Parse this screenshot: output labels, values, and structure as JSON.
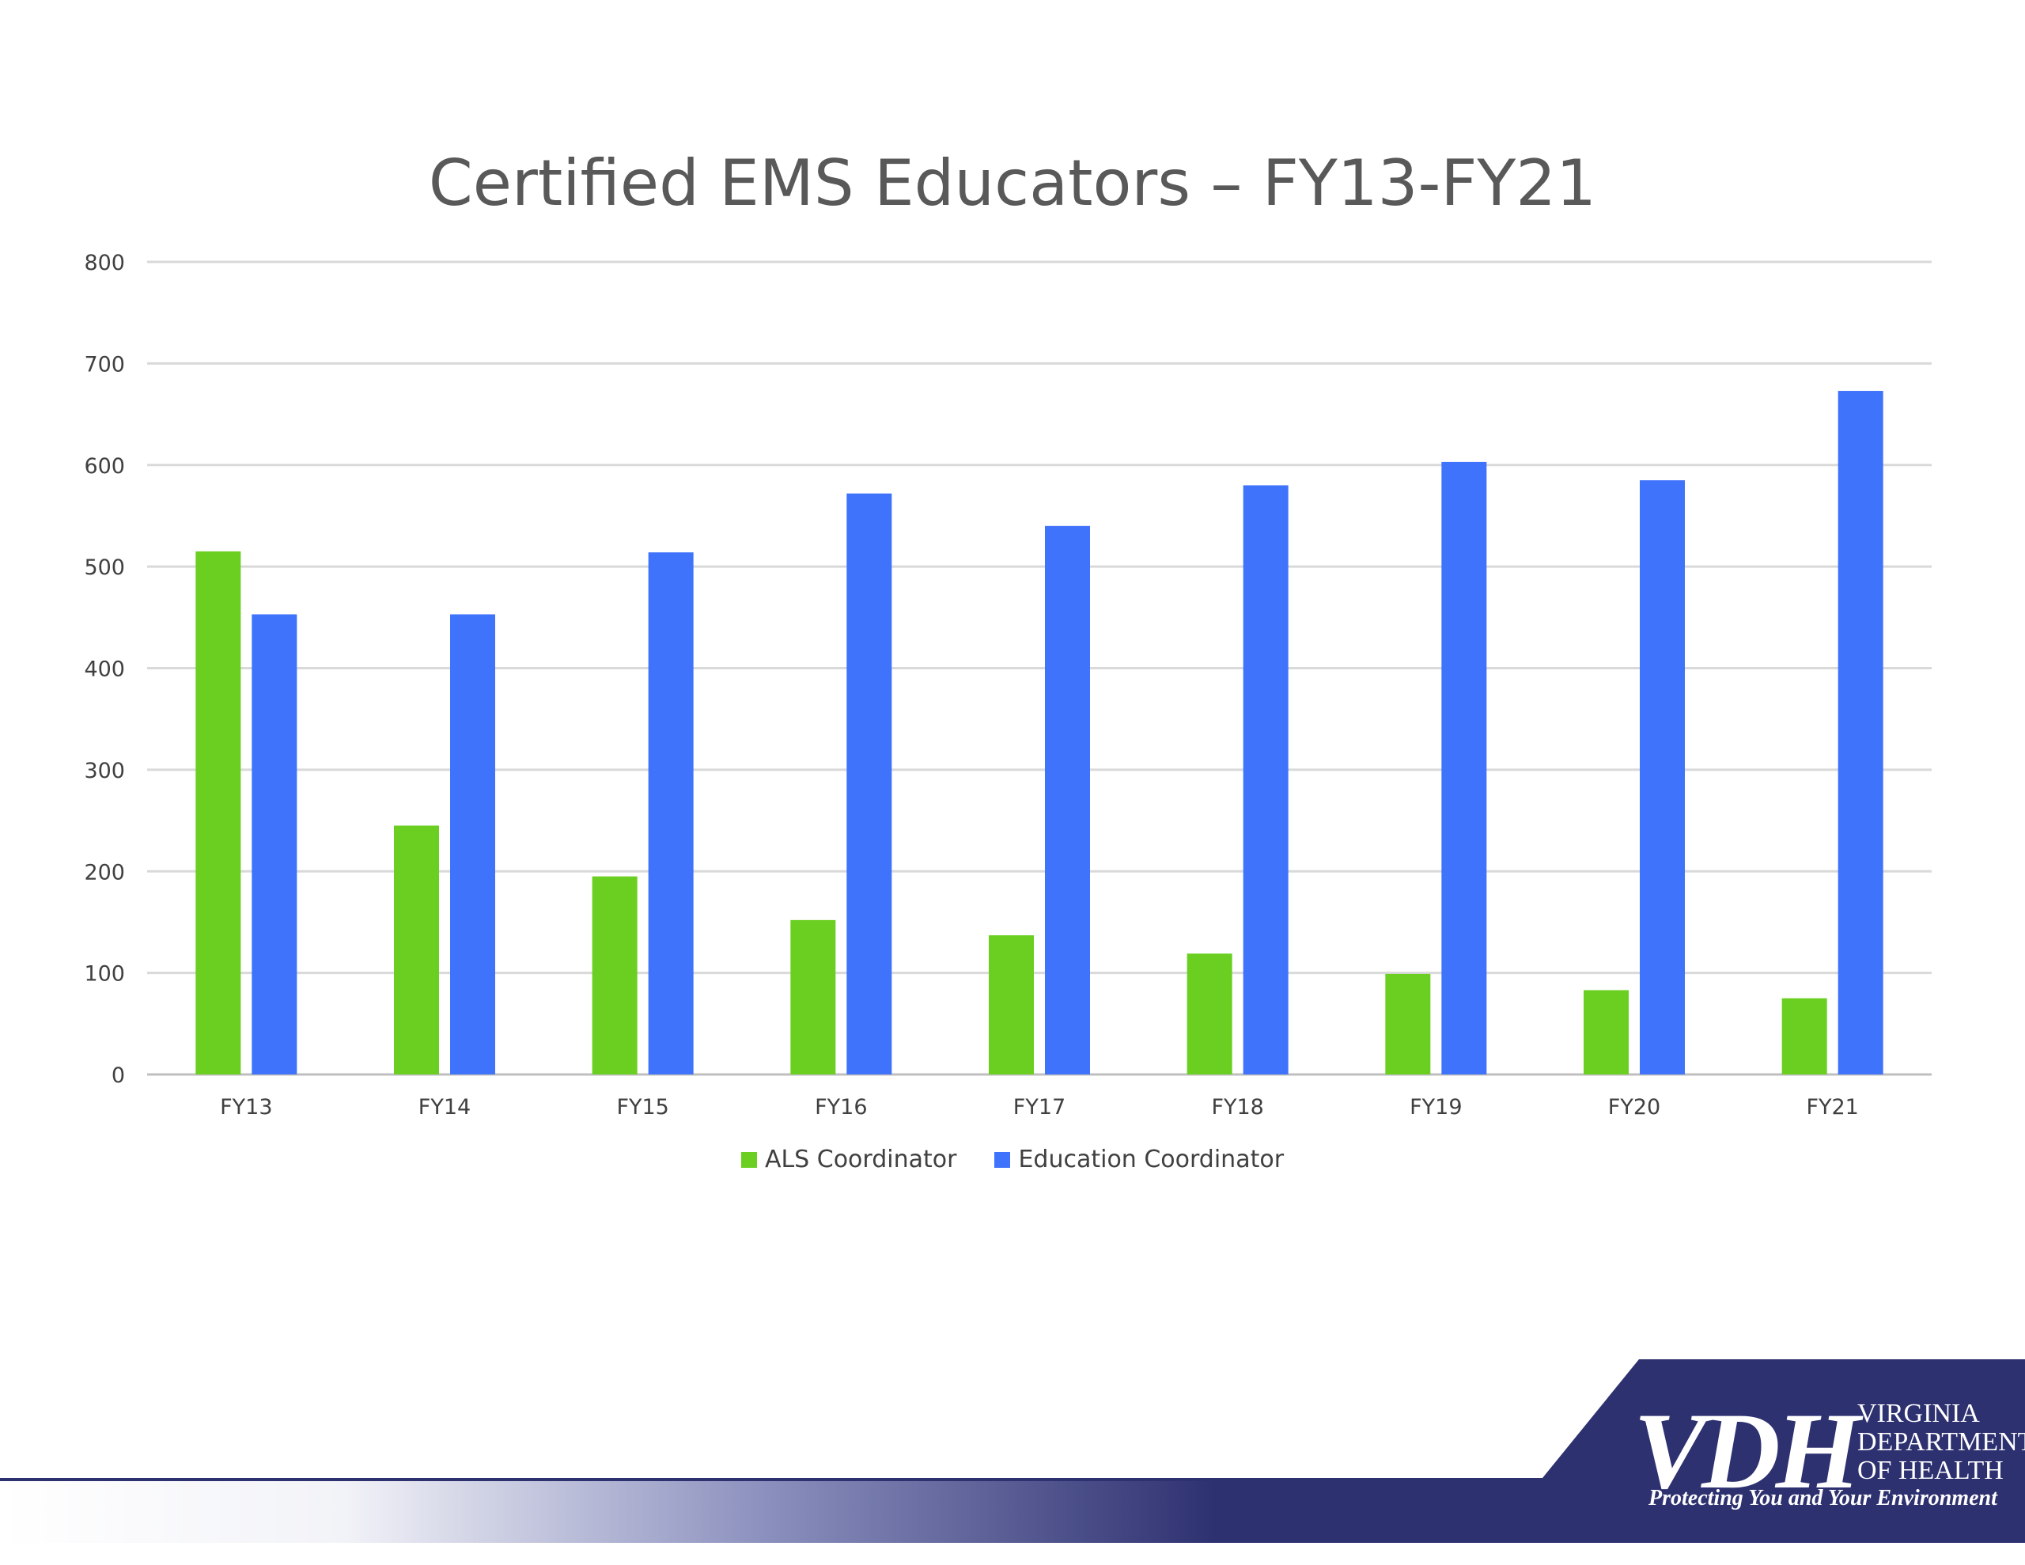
{
  "chart_data": {
    "type": "bar",
    "title": "Certified EMS Educators – FY13-FY21",
    "xlabel": "",
    "ylabel": "",
    "categories": [
      "FY13",
      "FY14",
      "FY15",
      "FY16",
      "FY17",
      "FY18",
      "FY19",
      "FY20",
      "FY21"
    ],
    "series": [
      {
        "name": "ALS Coordinator",
        "color": "#6ACF21",
        "values": [
          515,
          245,
          195,
          152,
          137,
          119,
          99,
          83,
          75
        ]
      },
      {
        "name": "Education Coordinator",
        "color": "#3F73FC",
        "values": [
          453,
          453,
          514,
          572,
          540,
          580,
          603,
          585,
          673
        ]
      }
    ],
    "ylim": [
      0,
      800
    ],
    "yticks": [
      0,
      100,
      200,
      300,
      400,
      500,
      600,
      700,
      800
    ],
    "grid": true,
    "legend_position": "bottom"
  },
  "logo": {
    "abbreviation": "VDH",
    "name_lines": [
      "VIRGINIA",
      "DEPARTMENT",
      "OF HEALTH"
    ],
    "tagline": "Protecting You and Your Environment"
  },
  "colors": {
    "footer_band": "#2E3170",
    "title_text": "#595959",
    "axis_text": "#404040",
    "gridline": "#D9D9D9"
  }
}
